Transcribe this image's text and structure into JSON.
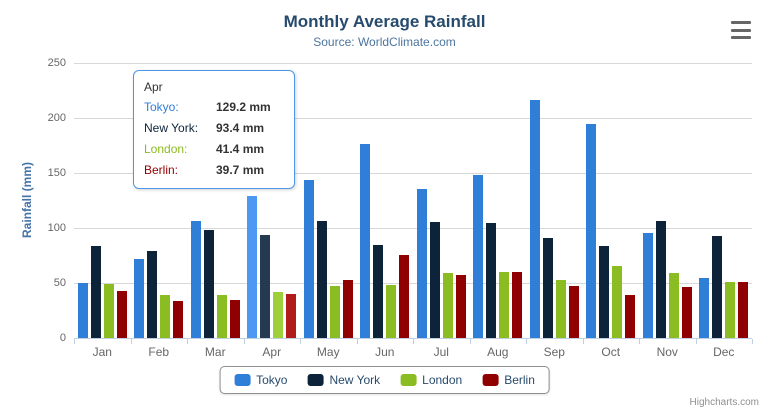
{
  "colors": {
    "title_color": "#274b6d",
    "subtitle_color": "#4d759e",
    "yaxis_title_color": "#4572a7",
    "axis_label_color": "#666666",
    "grid_color": "#d8d8d8",
    "axis_line_color": "#c0d0e0",
    "legend_border_color": "#909090",
    "legend_text_color": "#274b6d",
    "credits_color": "#909090",
    "menu_icon_color": "#666666",
    "tooltip_border_color": "#4e96e8",
    "tooltip_text_color": "#333333"
  },
  "credits": "Highcharts.com",
  "tooltip": {
    "category": "Apr",
    "rows": [
      {
        "label": "Tokyo:",
        "value": "129.2 mm",
        "color": "#2f7ed8"
      },
      {
        "label": "New York:",
        "value": "93.4 mm",
        "color": "#0d233a"
      },
      {
        "label": "London:",
        "value": "41.4 mm",
        "color": "#8bbc21"
      },
      {
        "label": "Berlin:",
        "value": "39.7 mm",
        "color": "#910000"
      }
    ]
  },
  "chart_data": {
    "type": "bar",
    "title": "Monthly Average Rainfall",
    "subtitle": "Source: WorldClimate.com",
    "ylabel": "Rainfall (mm)",
    "xlabel": "",
    "ylim": [
      0,
      250
    ],
    "ytick_interval": 50,
    "grid": true,
    "legend_position": "bottom",
    "hover_category": "Apr",
    "categories": [
      "Jan",
      "Feb",
      "Mar",
      "Apr",
      "May",
      "Jun",
      "Jul",
      "Aug",
      "Sep",
      "Oct",
      "Nov",
      "Dec"
    ],
    "series": [
      {
        "name": "Tokyo",
        "color": "#2f7ed8",
        "hover_color": "#4d99f2",
        "values": [
          49.9,
          71.5,
          106.4,
          129.2,
          144.0,
          176.0,
          135.6,
          148.5,
          216.4,
          194.1,
          95.6,
          54.4
        ]
      },
      {
        "name": "New York",
        "color": "#0d233a",
        "hover_color": "#253a50",
        "values": [
          83.6,
          78.8,
          98.5,
          93.4,
          106.0,
          84.5,
          105.0,
          104.3,
          91.2,
          83.5,
          106.6,
          92.3
        ]
      },
      {
        "name": "London",
        "color": "#8bbc21",
        "hover_color": "#9ed03c",
        "values": [
          48.9,
          38.8,
          39.3,
          41.4,
          47.0,
          48.3,
          59.0,
          59.6,
          52.4,
          65.2,
          59.3,
          51.2
        ]
      },
      {
        "name": "Berlin",
        "color": "#910000",
        "hover_color": "#b11b1b",
        "values": [
          42.4,
          33.2,
          34.5,
          39.7,
          52.6,
          75.5,
          57.4,
          60.4,
          47.6,
          39.1,
          46.8,
          51.1
        ]
      }
    ]
  }
}
